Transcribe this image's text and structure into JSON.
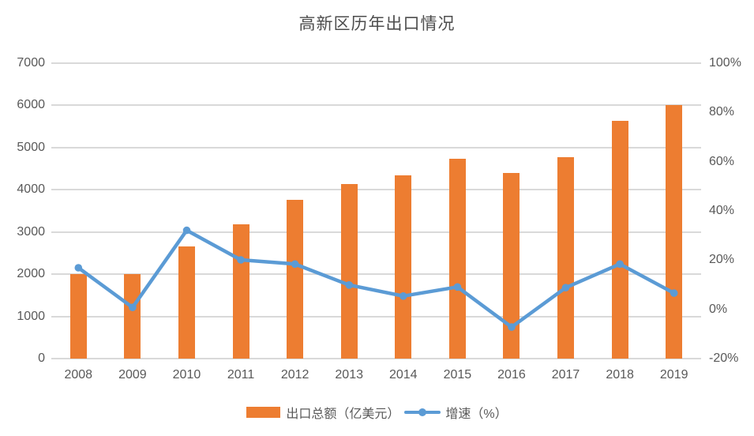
{
  "title": "高新区历年出口情况",
  "colors": {
    "bar": "#ED7D31",
    "line": "#5B9BD5",
    "marker": "#5B9BD5",
    "gridline": "#D9D9D9",
    "axis_text": "#595959",
    "title_text": "#4d4d4d",
    "background": "#FFFFFF"
  },
  "chart_data": {
    "type": "bar+line combo",
    "title": "高新区历年出口情况",
    "categories": [
      "2008",
      "2009",
      "2010",
      "2011",
      "2012",
      "2013",
      "2014",
      "2015",
      "2016",
      "2017",
      "2018",
      "2019"
    ],
    "series": [
      {
        "name": "出口总额（亿美元）",
        "type": "bar",
        "axis": "left",
        "color": "#ED7D31",
        "values": [
          2000,
          2010,
          2650,
          3180,
          3765,
          4140,
          4350,
          4735,
          4390,
          4770,
          5640,
          6000
        ]
      },
      {
        "name": "增速（%）",
        "type": "line",
        "axis": "right",
        "color": "#5B9BD5",
        "values": [
          16.9,
          0.8,
          32.1,
          20.1,
          18.4,
          9.9,
          5.4,
          9.1,
          -7.2,
          8.8,
          18.4,
          6.6
        ]
      }
    ],
    "left_axis": {
      "min": 0,
      "max": 7000,
      "step": 1000,
      "tick_labels": [
        "0",
        "1000",
        "2000",
        "3000",
        "4000",
        "5000",
        "6000",
        "7000"
      ]
    },
    "right_axis": {
      "min": -20,
      "max": 100,
      "step": 20,
      "tick_labels": [
        "-20%",
        "0%",
        "20%",
        "40%",
        "60%",
        "80%",
        "100%"
      ]
    },
    "grid": true,
    "legend_position": "bottom",
    "xlabel": "",
    "ylabel": ""
  },
  "legend": {
    "bar_label": "出口总额（亿美元）",
    "line_label": "增速（%）"
  }
}
